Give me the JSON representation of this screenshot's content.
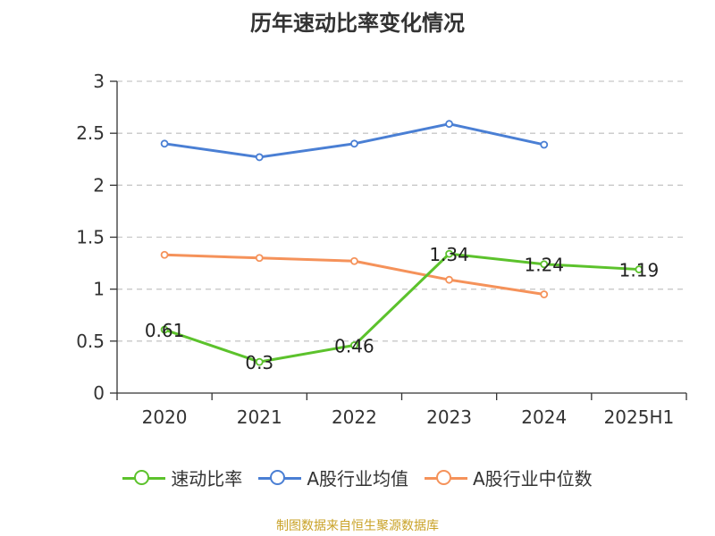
{
  "chart_data": {
    "type": "line",
    "title": "历年速动比率变化情况",
    "categories": [
      "2020",
      "2021",
      "2022",
      "2023",
      "2024",
      "2025H1"
    ],
    "ylim": [
      0,
      3
    ],
    "yticks": [
      "0",
      "0.5",
      "1",
      "1.5",
      "2",
      "2.5",
      "3"
    ],
    "grid": true,
    "legend_position": "bottom",
    "series": [
      {
        "name": "速动比率",
        "color": "#5cc22c",
        "values": [
          0.61,
          0.3,
          0.46,
          1.34,
          1.24,
          1.19
        ],
        "labels": [
          "0.61",
          "0.3",
          "0.46",
          "1.34",
          "1.24",
          "1.19"
        ]
      },
      {
        "name": "A股行业均值",
        "color": "#4a7fd4",
        "values": [
          2.4,
          2.27,
          2.4,
          2.59,
          2.39,
          null
        ]
      },
      {
        "name": "A股行业中位数",
        "color": "#f5925a",
        "values": [
          1.33,
          1.3,
          1.27,
          1.09,
          0.95,
          null
        ]
      }
    ]
  },
  "source": "制图数据来自恒生聚源数据库"
}
